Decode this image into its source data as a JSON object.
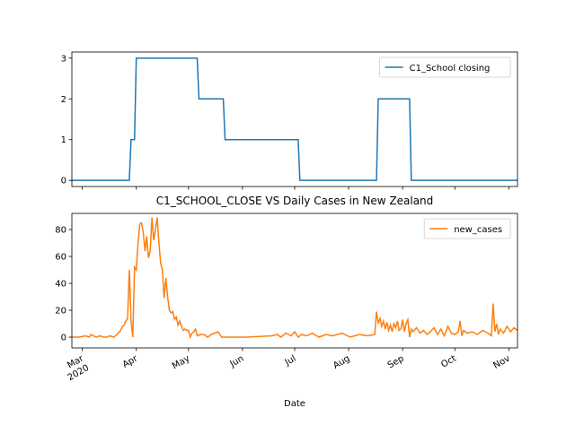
{
  "chart_data": [
    {
      "type": "line",
      "xlim": [
        0,
        256
      ],
      "ylim": [
        -0.15,
        3.15
      ],
      "yticks": [
        0,
        1,
        2,
        3
      ],
      "legend": "upper right",
      "series": [
        {
          "name": "C1_School closing",
          "color": "#1f77b4",
          "x": [
            0,
            33,
            34,
            36,
            37,
            72,
            73,
            87,
            88,
            130,
            131,
            175,
            176,
            194,
            195,
            256
          ],
          "values": [
            0,
            0,
            1,
            1,
            3,
            3,
            2,
            2,
            1,
            1,
            0,
            0,
            2,
            2,
            0,
            0
          ]
        }
      ]
    },
    {
      "type": "line",
      "title": "C1_SCHOOL_CLOSE VS Daily Cases in New Zealand",
      "xlabel": "Date",
      "xlim": [
        0,
        256
      ],
      "ylim": [
        -8,
        92
      ],
      "yticks": [
        0,
        20,
        40,
        60,
        80
      ],
      "legend": "upper right",
      "xticks": [
        {
          "value": 6,
          "label": "Mar\n2020"
        },
        {
          "value": 37,
          "label": "Apr"
        },
        {
          "value": 67,
          "label": "May"
        },
        {
          "value": 98,
          "label": "Jun"
        },
        {
          "value": 128,
          "label": "Jul"
        },
        {
          "value": 159,
          "label": "Aug"
        },
        {
          "value": 190,
          "label": "Sep"
        },
        {
          "value": 220,
          "label": "Oct"
        },
        {
          "value": 251,
          "label": "Nov"
        }
      ],
      "series": [
        {
          "name": "new_cases",
          "color": "#ff7f0e",
          "x": [
            0,
            4,
            8,
            10,
            11,
            14,
            16,
            18,
            20,
            22,
            24,
            26,
            28,
            29,
            30,
            31,
            32,
            33,
            34,
            35,
            36,
            37,
            38,
            39,
            40,
            41,
            42,
            43,
            44,
            45,
            46,
            47,
            48,
            49,
            50,
            51,
            52,
            53,
            54,
            55,
            56,
            57,
            58,
            59,
            60,
            61,
            62,
            63,
            64,
            65,
            66,
            67,
            68,
            69,
            70,
            71,
            72,
            74,
            76,
            78,
            80,
            84,
            86,
            88,
            100,
            115,
            118,
            120,
            123,
            126,
            128,
            130,
            132,
            135,
            138,
            142,
            146,
            150,
            155,
            160,
            165,
            170,
            174,
            175,
            176,
            177,
            178,
            179,
            180,
            181,
            182,
            183,
            184,
            185,
            186,
            187,
            188,
            189,
            190,
            191,
            192,
            193,
            194,
            195,
            196,
            198,
            200,
            202,
            204,
            206,
            208,
            210,
            212,
            214,
            216,
            218,
            220,
            222,
            223,
            224,
            225,
            227,
            230,
            233,
            236,
            239,
            241,
            242,
            243,
            244,
            245,
            246,
            248,
            250,
            252,
            254,
            256
          ],
          "values": [
            0,
            0,
            1,
            0,
            2,
            0,
            1,
            0,
            0,
            1,
            0,
            2,
            5,
            8,
            9,
            12,
            14,
            50,
            12,
            0,
            52,
            50,
            70,
            84,
            85,
            78,
            64,
            75,
            59,
            64,
            89,
            72,
            80,
            89,
            70,
            55,
            50,
            29,
            44,
            30,
            20,
            18,
            19,
            13,
            15,
            9,
            12,
            8,
            5,
            6,
            5,
            5,
            0,
            3,
            4,
            6,
            1,
            2,
            2,
            0,
            2,
            4,
            0,
            0,
            0,
            1,
            2,
            0,
            3,
            1,
            4,
            0,
            2,
            1,
            3,
            0,
            2,
            1,
            3,
            0,
            2,
            1,
            2,
            19,
            10,
            14,
            8,
            12,
            6,
            11,
            5,
            9,
            4,
            10,
            7,
            12,
            5,
            6,
            13,
            4,
            10,
            13,
            0,
            6,
            4,
            7,
            3,
            5,
            2,
            4,
            7,
            2,
            6,
            1,
            8,
            3,
            2,
            4,
            12,
            1,
            5,
            3,
            4,
            2,
            5,
            3,
            1,
            25,
            4,
            10,
            2,
            6,
            3,
            8,
            4,
            7,
            5
          ]
        }
      ]
    }
  ]
}
